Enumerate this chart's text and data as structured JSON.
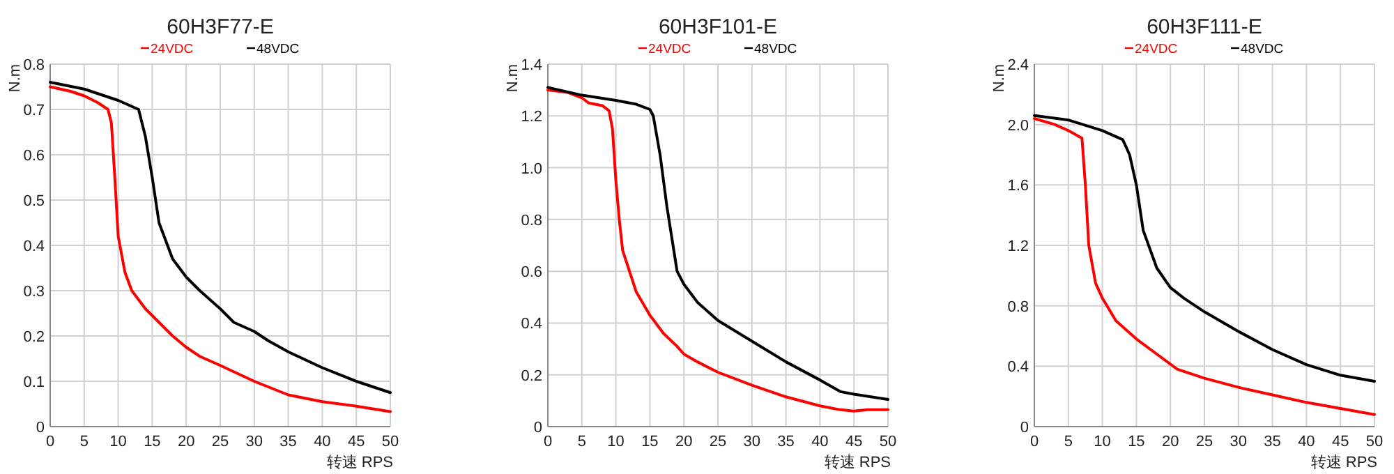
{
  "chart_data": [
    {
      "type": "line",
      "title": "60H3F77-E",
      "xlabel": "转速 RPS",
      "ylabel": "N.m",
      "xlim": [
        0,
        50
      ],
      "xticks": [
        0,
        5,
        10,
        15,
        20,
        25,
        30,
        35,
        40,
        45,
        50
      ],
      "ylim": [
        0,
        0.8
      ],
      "yticks": [
        0,
        0.1,
        0.2,
        0.3,
        0.4,
        0.5,
        0.6,
        0.7,
        0.8
      ],
      "grid": true,
      "legend": "top",
      "series": [
        {
          "name": "24VDC",
          "color": "#ff0000",
          "x": [
            0,
            3,
            5,
            7,
            8.5,
            9,
            9.5,
            10,
            11,
            12,
            14,
            16,
            18,
            20,
            22,
            25,
            30,
            35,
            40,
            45,
            50
          ],
          "values": [
            0.75,
            0.74,
            0.73,
            0.715,
            0.7,
            0.67,
            0.55,
            0.42,
            0.34,
            0.3,
            0.26,
            0.23,
            0.2,
            0.175,
            0.155,
            0.135,
            0.1,
            0.07,
            0.055,
            0.045,
            0.033
          ]
        },
        {
          "name": "48VDC",
          "color": "#000000",
          "x": [
            0,
            5,
            8,
            10,
            13,
            14,
            15,
            16,
            17,
            18,
            20,
            22,
            25,
            27,
            30,
            32,
            35,
            40,
            45,
            50
          ],
          "values": [
            0.76,
            0.745,
            0.73,
            0.72,
            0.7,
            0.64,
            0.55,
            0.45,
            0.41,
            0.37,
            0.33,
            0.3,
            0.26,
            0.23,
            0.21,
            0.19,
            0.165,
            0.13,
            0.1,
            0.075
          ]
        }
      ]
    },
    {
      "type": "line",
      "title": "60H3F101-E",
      "xlabel": "转速 RPS",
      "ylabel": "N.m",
      "xlim": [
        0,
        50
      ],
      "xticks": [
        0,
        5,
        10,
        15,
        20,
        25,
        30,
        35,
        40,
        45,
        50
      ],
      "ylim": [
        0,
        1.4
      ],
      "yticks": [
        0,
        0.2,
        0.4,
        0.6,
        0.8,
        {
          "value": 1,
          "label": "1.0"
        },
        1.2,
        1.4
      ],
      "grid": true,
      "legend": "top",
      "series": [
        {
          "name": "24VDC",
          "color": "#ff0000",
          "x": [
            0,
            3,
            5,
            6,
            8,
            9,
            9.5,
            10,
            10.5,
            11,
            12,
            13,
            15,
            17,
            19,
            20,
            22,
            25,
            30,
            35,
            40,
            43,
            45,
            47,
            50
          ],
          "values": [
            1.3,
            1.29,
            1.27,
            1.25,
            1.24,
            1.22,
            1.15,
            0.95,
            0.8,
            0.68,
            0.6,
            0.52,
            0.43,
            0.36,
            0.31,
            0.28,
            0.25,
            0.21,
            0.16,
            0.115,
            0.08,
            0.065,
            0.06,
            0.065,
            0.065
          ]
        },
        {
          "name": "48VDC",
          "color": "#000000",
          "x": [
            0,
            5,
            10,
            13,
            15,
            15.5,
            16.5,
            17.5,
            19,
            20,
            22,
            25,
            30,
            35,
            40,
            43,
            45,
            50
          ],
          "values": [
            1.31,
            1.28,
            1.26,
            1.245,
            1.225,
            1.2,
            1.05,
            0.85,
            0.6,
            0.55,
            0.48,
            0.41,
            0.33,
            0.25,
            0.18,
            0.135,
            0.125,
            0.105
          ]
        }
      ]
    },
    {
      "type": "line",
      "title": "60H3F111-E",
      "xlabel": "转速 RPS",
      "ylabel": "N.m",
      "xlim": [
        0,
        50
      ],
      "xticks": [
        0,
        5,
        10,
        15,
        20,
        25,
        30,
        35,
        40,
        45,
        50
      ],
      "ylim": [
        0,
        2.4
      ],
      "yticks": [
        0,
        0.4,
        0.8,
        1.2,
        1.6,
        {
          "value": 2,
          "label": "2.0"
        },
        2.4
      ],
      "grid": true,
      "legend": "top",
      "series": [
        {
          "name": "24VDC",
          "color": "#ff0000",
          "x": [
            0,
            3,
            5,
            7,
            7.5,
            8,
            9,
            10,
            12,
            15,
            18,
            21,
            25,
            30,
            35,
            40,
            45,
            50
          ],
          "values": [
            2.04,
            2.0,
            1.96,
            1.91,
            1.6,
            1.2,
            0.95,
            0.85,
            0.7,
            0.58,
            0.48,
            0.38,
            0.32,
            0.26,
            0.21,
            0.16,
            0.12,
            0.08
          ]
        },
        {
          "name": "48VDC",
          "color": "#000000",
          "x": [
            0,
            5,
            10,
            13,
            14,
            15,
            16,
            18,
            20,
            22,
            25,
            30,
            35,
            40,
            45,
            50
          ],
          "values": [
            2.06,
            2.03,
            1.96,
            1.9,
            1.8,
            1.6,
            1.3,
            1.05,
            0.92,
            0.85,
            0.76,
            0.63,
            0.51,
            0.41,
            0.34,
            0.3
          ]
        }
      ]
    }
  ]
}
